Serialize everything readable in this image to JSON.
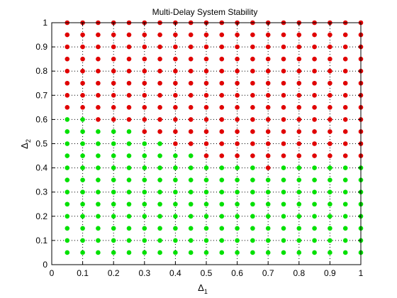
{
  "chart_data": {
    "type": "scatter",
    "title": "Multi-Delay System Stability",
    "xlabel": {
      "main": "Δ",
      "sub": "1"
    },
    "ylabel": {
      "main": "Δ",
      "sub": "2"
    },
    "xlim": [
      0,
      1
    ],
    "ylim": [
      0,
      1
    ],
    "xticks": [
      0,
      0.1,
      0.2,
      0.3,
      0.4,
      0.5,
      0.6,
      0.7,
      0.8,
      0.9,
      1
    ],
    "yticks": [
      0,
      0.1,
      0.2,
      0.3,
      0.4,
      0.5,
      0.6,
      0.7,
      0.8,
      0.9,
      1
    ],
    "xtick_labels": [
      "0",
      "0.1",
      "0.2",
      "0.3",
      "0.4",
      "0.5",
      "0.6",
      "0.7",
      "0.8",
      "0.9",
      "1"
    ],
    "ytick_labels": [
      "0",
      "0.1",
      "0.2",
      "0.3",
      "0.4",
      "0.5",
      "0.6",
      "0.7",
      "0.8",
      "0.9",
      "1"
    ],
    "grid": true,
    "grid_style": "dotted",
    "x": [
      0.05,
      0.1,
      0.15,
      0.2,
      0.25,
      0.3,
      0.35,
      0.4,
      0.45,
      0.5,
      0.55,
      0.6,
      0.65,
      0.7,
      0.75,
      0.8,
      0.85,
      0.9,
      0.95,
      1.0
    ],
    "y": [
      0.05,
      0.1,
      0.15,
      0.2,
      0.25,
      0.3,
      0.35,
      0.4,
      0.45,
      0.5,
      0.55,
      0.6,
      0.65,
      0.7,
      0.75,
      0.8,
      0.85,
      0.9,
      0.95,
      1.0
    ],
    "stability_boundary": {
      "description": "smallest Δ2 value that is unstable (red) for each Δ1 column",
      "x": [
        0.05,
        0.1,
        0.15,
        0.2,
        0.25,
        0.3,
        0.35,
        0.4,
        0.45,
        0.5,
        0.55,
        0.6,
        0.65,
        0.7,
        0.75,
        0.8,
        0.85,
        0.9,
        0.95,
        1.0
      ],
      "min_unstable_y": [
        0.65,
        0.65,
        0.6,
        0.6,
        0.6,
        0.55,
        0.55,
        0.5,
        0.5,
        0.45,
        0.45,
        0.45,
        0.45,
        0.4,
        0.45,
        0.45,
        0.45,
        0.45,
        0.45,
        0.45
      ]
    },
    "colors": {
      "stable": "#00e000",
      "unstable": "#e00000",
      "grid": "#000000",
      "axis": "#000000"
    },
    "figure_background": "#ffffff"
  }
}
